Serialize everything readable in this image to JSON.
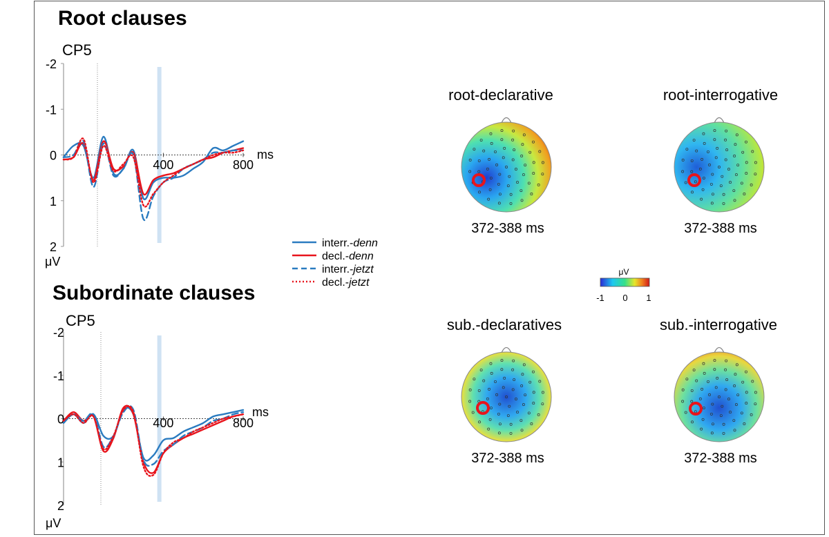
{
  "colors": {
    "interr": "#2a7bc0",
    "decl": "#e8141c",
    "window": "#cfe2f3",
    "electrode_marker": "#e8141c",
    "colorbar": [
      "#2a2ad4",
      "#1ec8f0",
      "#36e08a",
      "#e6e62a",
      "#f08020",
      "#d01818"
    ]
  },
  "panels": {
    "root": {
      "section_title": "Root clauses",
      "channel": "CP5"
    },
    "sub": {
      "section_title": "Subordinate clauses",
      "channel": "CP5"
    }
  },
  "axis": {
    "y_ticks": [
      "-2",
      "-1",
      "0",
      "1",
      "2"
    ],
    "x_ticks": [
      "400",
      "800"
    ],
    "x_unit": "ms",
    "y_unit": "μV"
  },
  "legend": [
    {
      "prefix": "interr.-",
      "word": "denn",
      "color": "interr",
      "style": "solid"
    },
    {
      "prefix": "decl.-",
      "word": "denn",
      "color": "decl",
      "style": "solid"
    },
    {
      "prefix": "interr.-",
      "word": "jetzt",
      "color": "interr",
      "style": "dashed"
    },
    {
      "prefix": "decl.-",
      "word": "jetzt",
      "color": "decl",
      "style": "dotted"
    }
  ],
  "topomaps": [
    {
      "title": "root-declarative",
      "window": "372-388 ms"
    },
    {
      "title": "root-interrogative",
      "window": "372-388 ms"
    },
    {
      "title": "sub.-declaratives",
      "window": "372-388 ms"
    },
    {
      "title": "sub.-interrogative",
      "window": "372-388 ms"
    }
  ],
  "colorbar": {
    "unit": "μV",
    "ticks": [
      "-1",
      "0",
      "1"
    ]
  },
  "chart_data": [
    {
      "type": "line",
      "panel": "root",
      "x": [
        -100,
        -50,
        0,
        50,
        100,
        150,
        200,
        250,
        300,
        350,
        400,
        450,
        500,
        550,
        600,
        650,
        700,
        750,
        800
      ],
      "xlim": [
        -100,
        800
      ],
      "ylim": [
        2,
        -2
      ],
      "highlight_ms": 380,
      "series": [
        {
          "name": "interr.-denn",
          "color": "interr",
          "style": "solid",
          "values": [
            0.05,
            -0.2,
            -0.2,
            0.5,
            -0.4,
            0.4,
            0.3,
            -0.1,
            0.95,
            0.6,
            0.5,
            0.5,
            0.45,
            0.3,
            0.15,
            -0.15,
            -0.1,
            -0.2,
            -0.3
          ]
        },
        {
          "name": "decl.-denn",
          "color": "decl",
          "style": "solid",
          "values": [
            0.1,
            0.05,
            -0.25,
            0.55,
            -0.3,
            0.3,
            0.25,
            -0.05,
            0.85,
            0.55,
            0.45,
            0.4,
            0.3,
            0.2,
            0.1,
            0.05,
            -0.05,
            -0.1,
            -0.15
          ]
        },
        {
          "name": "interr.-jetzt",
          "color": "interr",
          "style": "dashed",
          "values": [
            0.05,
            0.0,
            -0.3,
            0.7,
            -0.25,
            0.45,
            0.3,
            0.0,
            1.4,
            0.9,
            0.6,
            0.5,
            0.3,
            0.2,
            0.1,
            -0.05,
            -0.05,
            -0.1,
            -0.1
          ]
        },
        {
          "name": "decl.-jetzt",
          "color": "decl",
          "style": "dotted",
          "values": [
            0.1,
            0.05,
            -0.35,
            0.6,
            -0.2,
            0.35,
            0.2,
            0.05,
            1.1,
            0.85,
            0.6,
            0.45,
            0.3,
            0.2,
            0.1,
            0.0,
            -0.05,
            -0.05,
            -0.1
          ]
        }
      ]
    },
    {
      "type": "line",
      "panel": "sub",
      "x": [
        -100,
        -50,
        0,
        50,
        100,
        150,
        200,
        250,
        300,
        350,
        400,
        450,
        500,
        550,
        600,
        650,
        700,
        750,
        800
      ],
      "xlim": [
        -100,
        800
      ],
      "ylim": [
        2,
        -2
      ],
      "highlight_ms": 380,
      "series": [
        {
          "name": "interr.-denn",
          "color": "interr",
          "style": "solid",
          "values": [
            0.1,
            -0.1,
            0.1,
            -0.1,
            0.4,
            0.4,
            -0.2,
            -0.1,
            0.9,
            0.85,
            0.5,
            0.45,
            0.3,
            0.2,
            0.1,
            -0.05,
            -0.1,
            -0.15,
            -0.2
          ]
        },
        {
          "name": "decl.-denn",
          "color": "decl",
          "style": "solid",
          "values": [
            0.05,
            -0.15,
            0.05,
            -0.05,
            0.75,
            0.45,
            -0.25,
            -0.1,
            1.0,
            1.25,
            0.8,
            0.6,
            0.45,
            0.35,
            0.25,
            0.15,
            0.05,
            -0.05,
            -0.1
          ]
        },
        {
          "name": "interr.-jetzt",
          "color": "interr",
          "style": "dashed",
          "values": [
            0.1,
            -0.1,
            0.05,
            -0.1,
            0.65,
            0.4,
            -0.15,
            -0.2,
            0.95,
            1.05,
            0.75,
            0.6,
            0.4,
            0.3,
            0.2,
            0.05,
            0.0,
            -0.1,
            -0.15
          ]
        },
        {
          "name": "decl.-jetzt",
          "color": "decl",
          "style": "dotted",
          "values": [
            0.05,
            -0.1,
            0.1,
            -0.05,
            0.7,
            0.4,
            -0.2,
            -0.15,
            1.1,
            1.3,
            0.8,
            0.55,
            0.45,
            0.3,
            0.2,
            0.1,
            0.0,
            -0.05,
            -0.1
          ]
        }
      ]
    }
  ]
}
